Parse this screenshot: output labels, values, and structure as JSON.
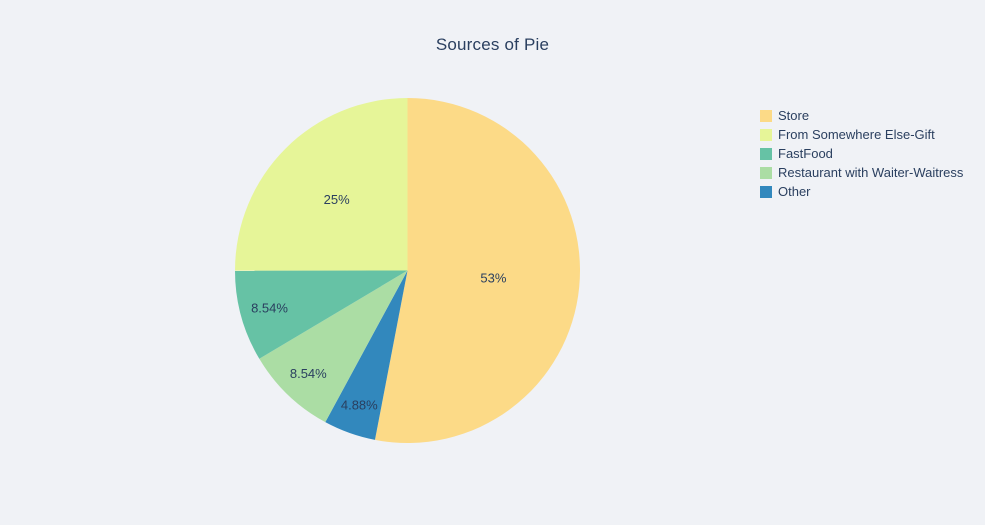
{
  "chart": {
    "title": "Sources of Pie"
  },
  "chart_data": {
    "type": "pie",
    "title": "Sources of Pie",
    "series": [
      {
        "label": "Store",
        "value": 53,
        "percent_label": "53%",
        "color": "#fcda87"
      },
      {
        "label": "From Somewhere Else-Gift",
        "value": 25,
        "percent_label": "25%",
        "color": "#e6f598"
      },
      {
        "label": "FastFood",
        "value": 8.54,
        "percent_label": "8.54%",
        "color": "#66c2a5"
      },
      {
        "label": "Restaurant with Waiter-Waitress",
        "value": 8.54,
        "percent_label": "8.54%",
        "color": "#abdda4"
      },
      {
        "label": "Other",
        "value": 4.88,
        "percent_label": "4.88%",
        "color": "#3288bd"
      }
    ],
    "legend_position": "right",
    "label_position": "inside",
    "slice_order_note": "largest slice starts at 12 o'clock clockwise, remaining slices ascending clockwise",
    "text_color": "#2a3f5f",
    "background_color": "#f0f2f6"
  }
}
